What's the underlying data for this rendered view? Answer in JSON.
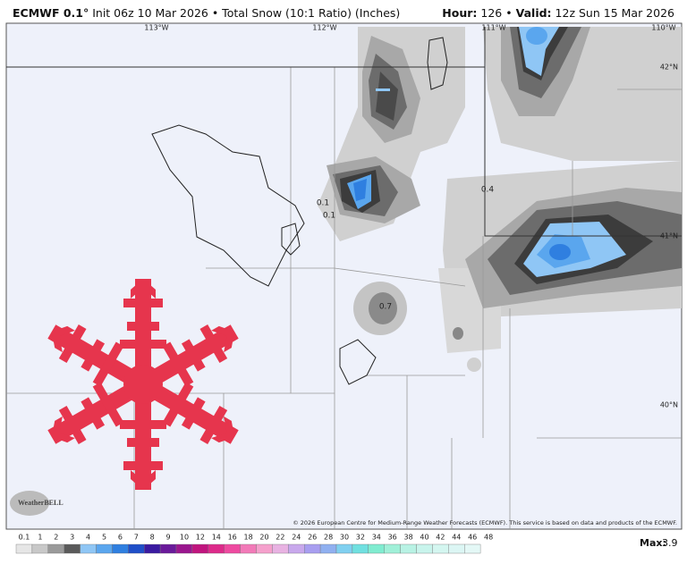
{
  "header": {
    "model": "ECMWF 0.1°",
    "description": "Init 06z 10 Mar 2026 • Total Snow (10:1 Ratio) (Inches)",
    "hour_label": "Hour:",
    "hour_value": "126 •",
    "valid_label": "Valid:",
    "valid_value": "12z Sun 15 Mar 2026"
  },
  "map": {
    "lon_labels": [
      "113°W",
      "112°W",
      "111°W",
      "110°W"
    ],
    "lat_labels": [
      "42°N",
      "41°N",
      "40°N"
    ],
    "value_labels": [
      "0.1",
      "0.1",
      "0.4",
      "0.7"
    ],
    "logo": "WeatherBELL",
    "copyright": "© 2026 European Centre for Medium-Range Weather Forecasts (ECMWF). This service is based on data and products of the ECMWF."
  },
  "legend": {
    "levels": [
      "0.1",
      "1",
      "2",
      "3",
      "4",
      "5",
      "6",
      "7",
      "8",
      "9",
      "10",
      "12",
      "14",
      "16",
      "18",
      "20",
      "22",
      "24",
      "26",
      "28",
      "30",
      "32",
      "34",
      "36",
      "38",
      "40",
      "42",
      "44",
      "46",
      "48"
    ],
    "colors": [
      "#e6e6e6",
      "#c8c8c8",
      "#9a9a9a",
      "#5a5a5a",
      "#8fc6f5",
      "#5aa6ee",
      "#2f7fe0",
      "#1f4fc8",
      "#3a1aa0",
      "#6a1a9a",
      "#9a168e",
      "#c0147e",
      "#dd2a8a",
      "#ee4aa0",
      "#f27ab8",
      "#f5a0cc",
      "#e8b2e2",
      "#c8a8ec",
      "#a89ef0",
      "#90b0f0",
      "#80d0f0",
      "#70e0e0",
      "#80ecd0",
      "#a0f0d8",
      "#b8f2e4",
      "#c8f4ec",
      "#d4f6f0",
      "#dcf6f4",
      "#e4f8f6"
    ],
    "max_label": "Max:",
    "max_value": "3.9"
  }
}
